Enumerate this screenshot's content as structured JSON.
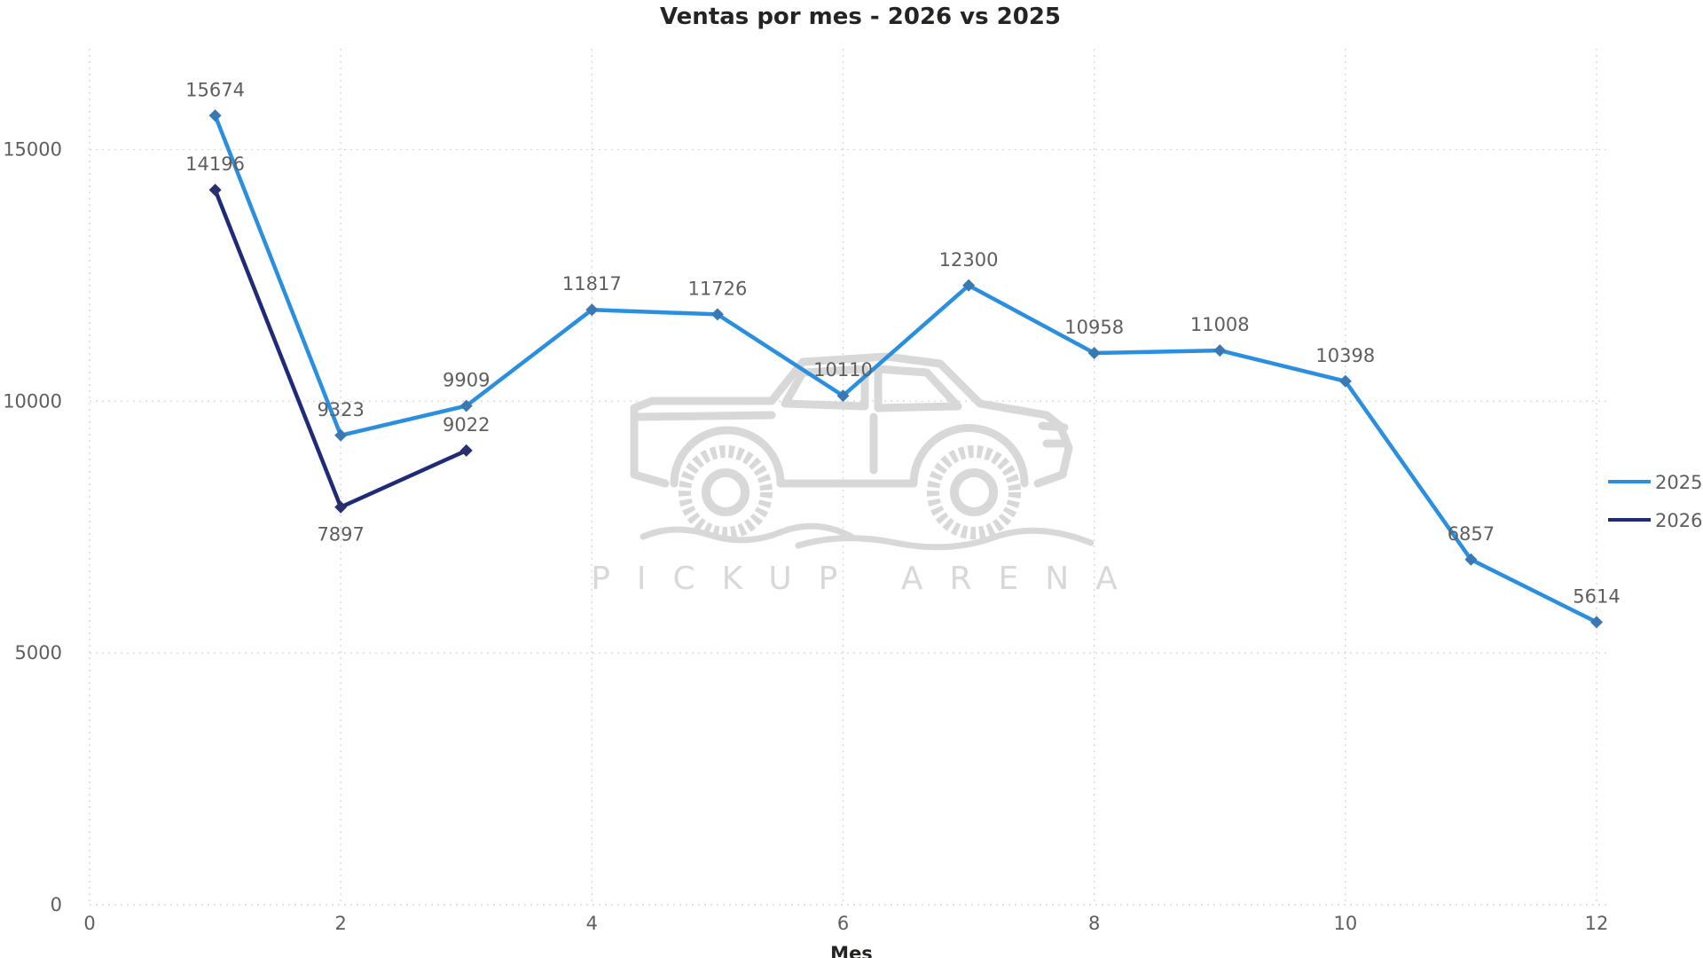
{
  "chart_data": {
    "type": "line",
    "title": "Ventas por mes - 2026 vs 2025",
    "xlabel": "Mes",
    "ylabel": "",
    "xlim": [
      0,
      12
    ],
    "ylim": [
      0,
      17000
    ],
    "xticks": [
      0,
      2,
      4,
      6,
      8,
      10,
      12
    ],
    "yticks": [
      0,
      5000,
      10000,
      15000
    ],
    "grid": true,
    "legend_position": "right",
    "series": [
      {
        "name": "2025",
        "color": "#2b8fe0",
        "marker": "diamond",
        "x": [
          1,
          2,
          3,
          4,
          5,
          6,
          7,
          8,
          9,
          10,
          11,
          12
        ],
        "y": [
          15674,
          9323,
          9909,
          11817,
          11726,
          10110,
          12300,
          10958,
          11008,
          10398,
          6857,
          5614
        ]
      },
      {
        "name": "2026",
        "color": "#1f2a78",
        "marker": "diamond",
        "x": [
          1,
          2,
          3
        ],
        "y": [
          14196,
          7897,
          9022
        ]
      }
    ],
    "data_labels": [
      {
        "text": "15674",
        "series": "2025",
        "x": 1,
        "position": "above"
      },
      {
        "text": "9323",
        "series": "2025",
        "x": 2,
        "position": "above"
      },
      {
        "text": "9909",
        "series": "2025",
        "x": 3,
        "position": "above"
      },
      {
        "text": "11817",
        "series": "2025",
        "x": 4,
        "position": "above"
      },
      {
        "text": "11726",
        "series": "2025",
        "x": 5,
        "position": "above"
      },
      {
        "text": "10110",
        "series": "2025",
        "x": 6,
        "position": "above"
      },
      {
        "text": "12300",
        "series": "2025",
        "x": 7,
        "position": "above"
      },
      {
        "text": "10958",
        "series": "2025",
        "x": 8,
        "position": "above"
      },
      {
        "text": "11008",
        "series": "2025",
        "x": 9,
        "position": "above"
      },
      {
        "text": "10398",
        "series": "2025",
        "x": 10,
        "position": "above"
      },
      {
        "text": "6857",
        "series": "2025",
        "x": 11,
        "position": "above"
      },
      {
        "text": "5614",
        "series": "2025",
        "x": 12,
        "position": "above"
      },
      {
        "text": "14196",
        "series": "2026",
        "x": 1,
        "position": "above"
      },
      {
        "text": "7897",
        "series": "2026",
        "x": 2,
        "position": "below"
      },
      {
        "text": "9022",
        "series": "2026",
        "x": 3,
        "position": "above"
      }
    ]
  },
  "watermark": {
    "text": "PICKUP ARENA",
    "icon": "pickup-truck-icon",
    "color": "#d8d8d8"
  }
}
